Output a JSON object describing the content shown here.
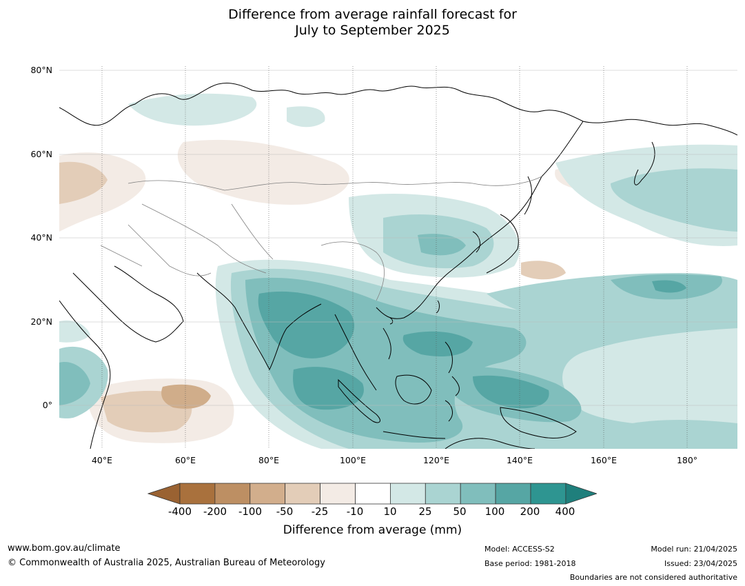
{
  "title": {
    "line1": "Difference from average rainfall forecast for",
    "line2": "July to September 2025"
  },
  "map": {
    "lat_labels": [
      "80°N",
      "60°N",
      "40°N",
      "20°N",
      "0°"
    ],
    "lon_labels": [
      "40°E",
      "60°E",
      "80°E",
      "100°E",
      "120°E",
      "140°E",
      "160°E",
      "180°"
    ],
    "colors": {
      "ocean_dry_strong": "#b5875a",
      "dry_mid": "#d0ad8a",
      "dry_light": "#e3cdb8",
      "dry_faint": "#f3ebe5",
      "wet_faint": "#d3e8e6",
      "wet_light": "#aad4d2",
      "wet_mid": "#7fbcba",
      "wet_strong": "#56a6a4",
      "coast": "#000000",
      "border": "#808080"
    }
  },
  "colorbar": {
    "ticks": [
      "-400",
      "-200",
      "-100",
      "-50",
      "-25",
      "-10",
      "10",
      "25",
      "50",
      "100",
      "200",
      "400"
    ],
    "colors": [
      "#a9713d",
      "#bd8f63",
      "#d2ae8c",
      "#e3cdb8",
      "#f3ebe5",
      "#ffffff",
      "#d3e8e6",
      "#aad4d2",
      "#80bebc",
      "#56a6a4",
      "#2e9591"
    ],
    "under_color": "#9a6232",
    "over_color": "#1f7f7c",
    "label": "Difference from average (mm)"
  },
  "footer": {
    "website": "www.bom.gov.au/climate",
    "copyright": "© Commonwealth of Australia 2025, Australian Bureau of Meteorology",
    "model": "Model: ACCESS-S2",
    "base_period": "Base period: 1981-2018",
    "model_run": "Model run: 21/04/2025",
    "issued": "Issued: 23/04/2025",
    "disclaimer": "Boundaries are not considered authoritative"
  }
}
